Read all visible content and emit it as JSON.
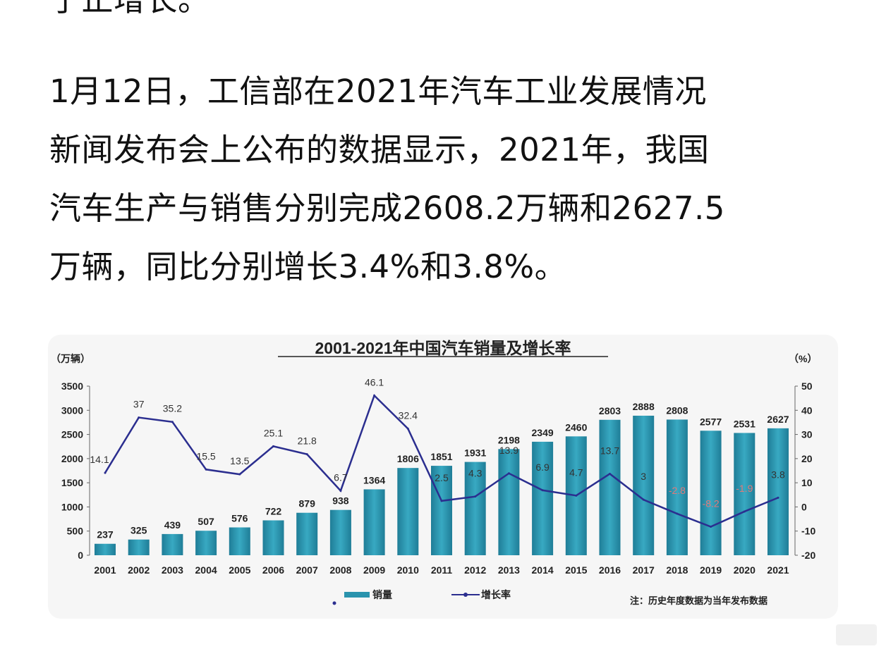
{
  "article": {
    "cut_line": "了止增长。",
    "paragraph": "1月12日，工信部在2021年汽车工业发展情况新闻发布会上公布的数据显示，2021年，我国汽车生产与销售分别完成2608.2万辆和2627.5万辆，同比分别增长3.4%和3.8%。",
    "lines": [
      "1月12日，工信部在2021年汽车工业发展情况",
      "新闻发布会上公布的数据显示，2021年，我国",
      "汽车生产与销售分别完成2608.2万辆和2627.5",
      "万辆，同比分别增长3.4%和3.8%。"
    ]
  },
  "chart_data": {
    "type": "bar+line",
    "title": "2001-2021年中国汽车销量及增长率",
    "ylabel_left": "（万辆）",
    "ylabel_right": "（%）",
    "categories": [
      "2001",
      "2002",
      "2003",
      "2004",
      "2005",
      "2006",
      "2007",
      "2008",
      "2009",
      "2010",
      "2011",
      "2012",
      "2013",
      "2014",
      "2015",
      "2016",
      "2017",
      "2018",
      "2019",
      "2020",
      "2021"
    ],
    "series": [
      {
        "name": "销量",
        "type": "bar",
        "axis": "left",
        "color": "#2a93ad",
        "values": [
          237,
          325,
          439,
          507,
          576,
          722,
          879,
          938,
          1364,
          1806,
          1851,
          1931,
          2198,
          2349,
          2460,
          2803,
          2888,
          2808,
          2577,
          2531,
          2627
        ]
      },
      {
        "name": "增长率",
        "type": "line",
        "axis": "right",
        "color": "#2b2e8f",
        "values": [
          14.1,
          37,
          35.2,
          15.5,
          13.5,
          25.1,
          21.8,
          6.7,
          46.1,
          32.4,
          2.5,
          4.3,
          13.9,
          6.9,
          4.7,
          13.7,
          3,
          -2.8,
          -8.2,
          -1.9,
          3.8
        ],
        "labels": [
          "14.1",
          "37",
          "35.2",
          "15.5",
          "13.5",
          "25.1",
          "21.8",
          "6.7",
          "46.1",
          "32.4",
          "2.5",
          "4.3",
          "13.9",
          "6.9",
          "4.7",
          "13.7",
          "3",
          "-2.8",
          "-8.2",
          "-1.9",
          "3.8"
        ]
      }
    ],
    "ylim_left": [
      0,
      3500
    ],
    "yticks_left": [
      "0",
      "500",
      "1000",
      "1500",
      "2000",
      "2500",
      "3000",
      "3500"
    ],
    "ylim_right": [
      -20,
      50
    ],
    "yticks_right": [
      "-20",
      "-10",
      "0",
      "10",
      "20",
      "30",
      "40",
      "50"
    ],
    "grid": false,
    "legend": "bottom",
    "note": "注：历史年度数据为当年发布数据"
  }
}
